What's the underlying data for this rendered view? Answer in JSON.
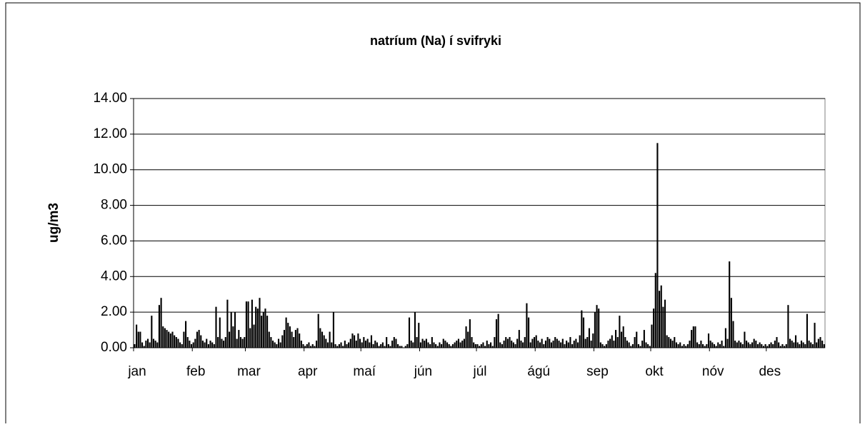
{
  "chart_data": {
    "type": "bar",
    "title": "natríum (Na) í svifryki",
    "ylabel": "ug/m3",
    "color": "#000000",
    "xlim": [
      0,
      365
    ],
    "xticks": [
      {
        "value": 0,
        "label": "jan"
      },
      {
        "value": 31,
        "label": "feb"
      },
      {
        "value": 59,
        "label": "mar"
      },
      {
        "value": 90,
        "label": "apr"
      },
      {
        "value": 120,
        "label": "maí"
      },
      {
        "value": 151,
        "label": "jún"
      },
      {
        "value": 181,
        "label": "júl"
      },
      {
        "value": 212,
        "label": "ágú"
      },
      {
        "value": 243,
        "label": "sep"
      },
      {
        "value": 273,
        "label": "okt"
      },
      {
        "value": 304,
        "label": "nóv"
      },
      {
        "value": 334,
        "label": "des"
      }
    ],
    "ylim": [
      0,
      14
    ],
    "yticks": [
      {
        "value": 0,
        "label": "0.00"
      },
      {
        "value": 2,
        "label": "2.00"
      },
      {
        "value": 4,
        "label": "4.00"
      },
      {
        "value": 6,
        "label": "6.00"
      },
      {
        "value": 8,
        "label": "8.00"
      },
      {
        "value": 10,
        "label": "10.00"
      },
      {
        "value": 12,
        "label": "12.00"
      },
      {
        "value": 14,
        "label": "14.00"
      }
    ],
    "grid": true,
    "values": [
      0.2,
      1.3,
      0.9,
      0.9,
      0.3,
      0.1,
      0.4,
      0.5,
      0.3,
      1.8,
      0.5,
      0.4,
      0.3,
      2.4,
      2.8,
      1.2,
      1.1,
      1.0,
      0.9,
      0.8,
      0.9,
      0.7,
      0.6,
      0.5,
      0.3,
      0.2,
      0.9,
      1.5,
      0.6,
      0.4,
      0.2,
      0.3,
      0.5,
      0.9,
      1.0,
      0.7,
      0.4,
      0.3,
      0.5,
      0.2,
      0.4,
      0.3,
      0.2,
      2.3,
      0.6,
      1.7,
      0.5,
      0.4,
      0.6,
      2.7,
      0.9,
      2.0,
      1.2,
      2.0,
      0.5,
      1.0,
      0.6,
      0.5,
      0.6,
      2.6,
      2.6,
      1.1,
      2.7,
      1.3,
      2.3,
      2.2,
      2.8,
      1.8,
      2.0,
      2.2,
      1.8,
      0.9,
      0.6,
      0.4,
      0.3,
      0.2,
      0.5,
      0.3,
      0.7,
      1.0,
      1.7,
      1.4,
      1.2,
      0.9,
      0.6,
      1.0,
      1.1,
      0.8,
      0.4,
      0.2,
      0.1,
      0.2,
      0.3,
      0.1,
      0.2,
      0.1,
      0.4,
      1.9,
      1.1,
      0.9,
      0.7,
      0.5,
      0.3,
      0.9,
      0.3,
      2.0,
      0.2,
      0.1,
      0.2,
      0.3,
      0.1,
      0.4,
      0.2,
      0.3,
      0.5,
      0.8,
      0.7,
      0.4,
      0.8,
      0.5,
      0.3,
      0.6,
      0.4,
      0.5,
      0.3,
      0.7,
      0.2,
      0.4,
      0.3,
      0.1,
      0.2,
      0.3,
      0.1,
      0.6,
      0.2,
      0.1,
      0.4,
      0.6,
      0.5,
      0.2,
      0.1,
      0.1,
      0.0,
      0.1,
      0.2,
      1.7,
      0.4,
      0.3,
      2.0,
      0.6,
      1.4,
      0.3,
      0.5,
      0.4,
      0.5,
      0.3,
      0.2,
      0.6,
      0.3,
      0.2,
      0.1,
      0.3,
      0.2,
      0.5,
      0.4,
      0.3,
      0.2,
      0.1,
      0.2,
      0.3,
      0.4,
      0.5,
      0.3,
      0.4,
      0.5,
      1.2,
      0.9,
      1.6,
      0.6,
      0.3,
      0.2,
      0.2,
      0.1,
      0.2,
      0.3,
      0.1,
      0.4,
      0.2,
      0.3,
      0.1,
      0.6,
      1.6,
      1.9,
      0.3,
      0.2,
      0.4,
      0.6,
      0.5,
      0.6,
      0.4,
      0.3,
      0.2,
      0.5,
      1.0,
      0.4,
      0.3,
      0.6,
      2.5,
      1.7,
      0.3,
      0.5,
      0.6,
      0.7,
      0.4,
      0.3,
      0.5,
      0.2,
      0.4,
      0.6,
      0.5,
      0.3,
      0.4,
      0.6,
      0.5,
      0.4,
      0.3,
      0.5,
      0.2,
      0.4,
      0.3,
      0.6,
      0.2,
      0.4,
      0.5,
      0.3,
      0.7,
      2.1,
      1.7,
      0.5,
      0.6,
      1.1,
      0.4,
      0.8,
      2.0,
      2.4,
      2.2,
      0.3,
      0.2,
      0.1,
      0.2,
      0.4,
      0.5,
      0.7,
      0.4,
      1.0,
      0.6,
      1.8,
      0.9,
      1.2,
      0.6,
      0.4,
      0.3,
      0.1,
      0.2,
      0.6,
      0.9,
      0.2,
      0.1,
      0.4,
      1.0,
      0.3,
      0.2,
      0.1,
      1.3,
      2.2,
      4.2,
      11.5,
      3.2,
      3.5,
      2.3,
      2.7,
      0.7,
      0.6,
      0.5,
      0.4,
      0.6,
      0.3,
      0.2,
      0.3,
      0.1,
      0.2,
      0.1,
      0.2,
      0.4,
      1.0,
      1.2,
      1.2,
      0.3,
      0.2,
      0.4,
      0.2,
      0.1,
      0.2,
      0.8,
      0.4,
      0.3,
      0.2,
      0.1,
      0.3,
      0.2,
      0.4,
      0.1,
      1.1,
      0.5,
      4.85,
      2.8,
      1.5,
      0.4,
      0.3,
      0.4,
      0.3,
      0.2,
      0.9,
      0.4,
      0.3,
      0.2,
      0.3,
      0.5,
      0.4,
      0.2,
      0.3,
      0.2,
      0.1,
      0.2,
      0.1,
      0.2,
      0.3,
      0.2,
      0.4,
      0.6,
      0.3,
      0.1,
      0.2,
      0.1,
      0.2,
      2.4,
      0.5,
      0.4,
      0.3,
      0.7,
      0.3,
      0.2,
      0.4,
      0.3,
      0.2,
      1.9,
      0.4,
      0.3,
      0.2,
      1.4,
      0.3,
      0.5,
      0.6,
      0.4,
      0.2
    ]
  }
}
